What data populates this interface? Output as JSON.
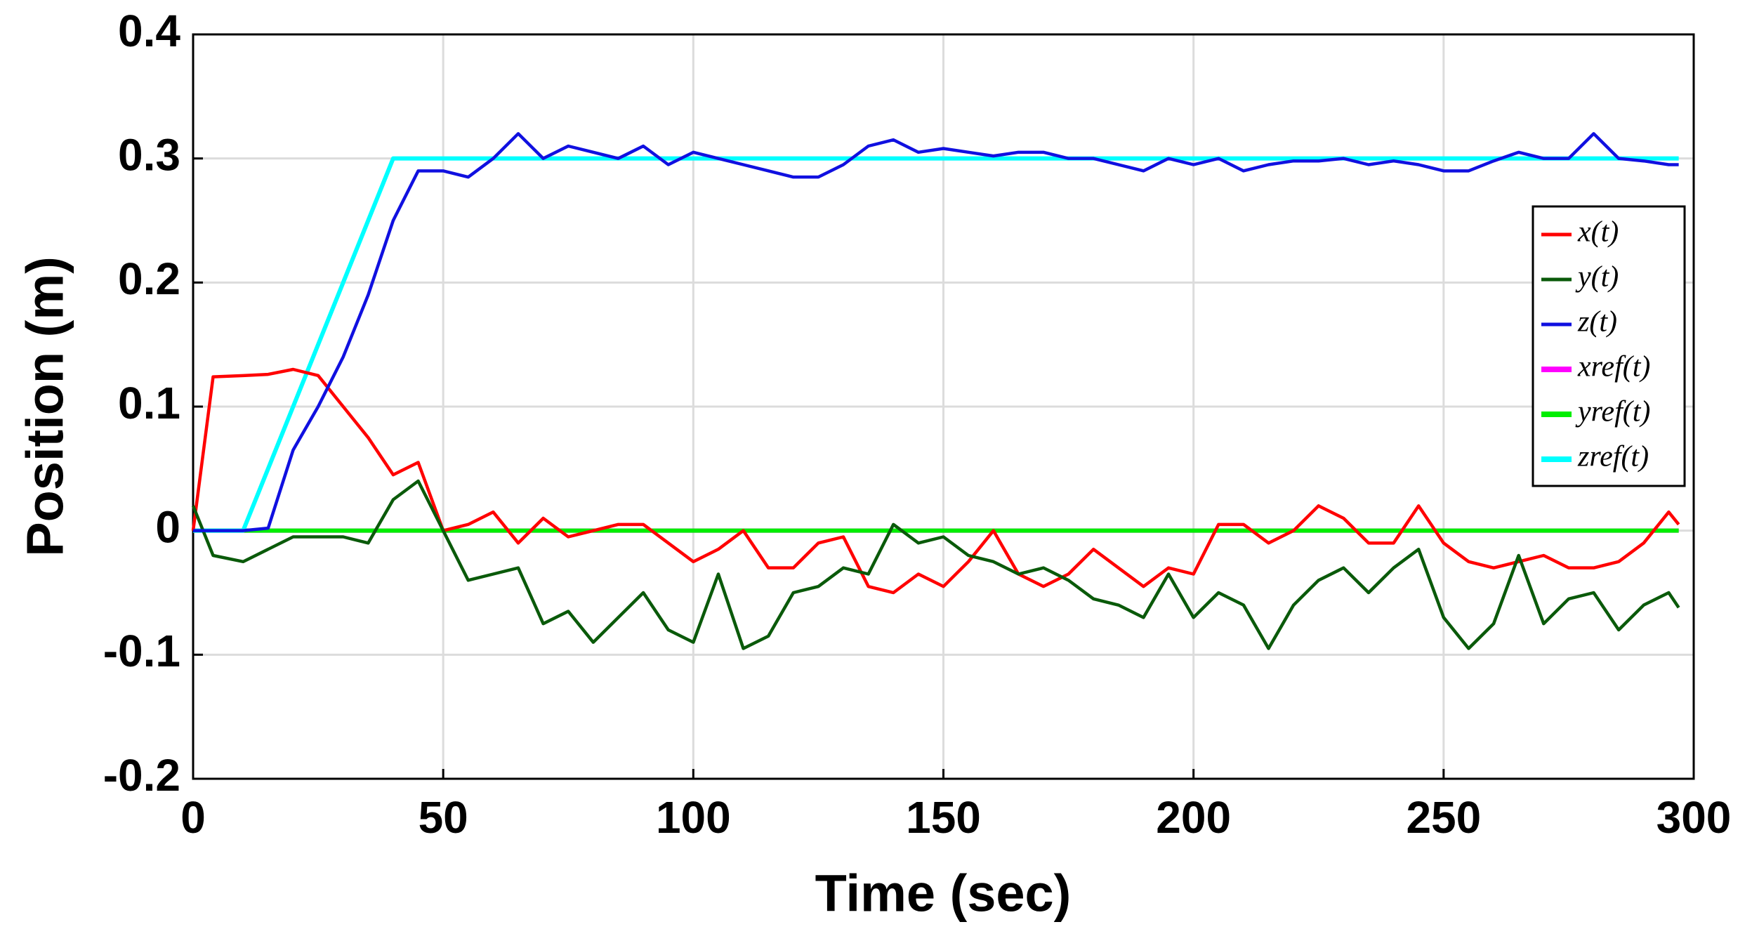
{
  "chart_data": {
    "type": "line",
    "x_label": "Time (sec)",
    "y_label": "Position (m)",
    "xlim": [
      0,
      300
    ],
    "xticks": [
      0,
      50,
      100,
      150,
      200,
      250,
      300
    ],
    "ylim": [
      -0.2,
      0.4
    ],
    "yticks": [
      -0.2,
      -0.1,
      0,
      0.1,
      0.2,
      0.3,
      0.4
    ],
    "grid": true,
    "legend": "right",
    "x": [
      0,
      4,
      10,
      15,
      20,
      25,
      30,
      35,
      40,
      45,
      50,
      55,
      60,
      65,
      70,
      75,
      80,
      85,
      90,
      95,
      100,
      105,
      110,
      115,
      120,
      125,
      130,
      135,
      140,
      145,
      150,
      155,
      160,
      165,
      170,
      175,
      180,
      185,
      190,
      195,
      200,
      205,
      210,
      215,
      220,
      225,
      230,
      235,
      240,
      245,
      250,
      255,
      260,
      265,
      270,
      275,
      280,
      285,
      290,
      295,
      297
    ],
    "series": [
      {
        "name": "x(t)",
        "color": "#ff0000",
        "values": [
          0.0,
          0.124,
          0.125,
          0.126,
          0.13,
          0.125,
          0.1,
          0.075,
          0.045,
          0.055,
          0.0,
          0.005,
          0.015,
          -0.01,
          0.01,
          -0.005,
          0.0,
          0.005,
          0.005,
          -0.01,
          -0.025,
          -0.015,
          0.0,
          -0.03,
          -0.03,
          -0.01,
          -0.005,
          -0.045,
          -0.05,
          -0.035,
          -0.045,
          -0.025,
          0.0,
          -0.035,
          -0.045,
          -0.035,
          -0.015,
          -0.03,
          -0.045,
          -0.03,
          -0.035,
          0.005,
          0.005,
          -0.01,
          0.0,
          0.02,
          0.01,
          -0.01,
          -0.01,
          0.02,
          -0.01,
          -0.025,
          -0.03,
          -0.025,
          -0.02,
          -0.03,
          -0.03,
          -0.025,
          -0.01,
          0.015,
          0.005
        ]
      },
      {
        "name": "y(t)",
        "color": "#0a5a0a",
        "values": [
          0.02,
          -0.02,
          -0.025,
          -0.015,
          -0.005,
          -0.005,
          -0.005,
          -0.01,
          0.025,
          0.04,
          0.0,
          -0.04,
          -0.035,
          -0.03,
          -0.075,
          -0.065,
          -0.09,
          -0.07,
          -0.05,
          -0.08,
          -0.09,
          -0.035,
          -0.095,
          -0.085,
          -0.05,
          -0.045,
          -0.03,
          -0.035,
          0.005,
          -0.01,
          -0.005,
          -0.02,
          -0.025,
          -0.035,
          -0.03,
          -0.04,
          -0.055,
          -0.06,
          -0.07,
          -0.035,
          -0.07,
          -0.05,
          -0.06,
          -0.095,
          -0.06,
          -0.04,
          -0.03,
          -0.05,
          -0.03,
          -0.015,
          -0.07,
          -0.095,
          -0.075,
          -0.02,
          -0.075,
          -0.055,
          -0.05,
          -0.08,
          -0.06,
          -0.05,
          -0.062
        ]
      },
      {
        "name": "z(t)",
        "color": "#1010e0",
        "values": [
          0,
          0,
          0.0,
          0.002,
          0.065,
          0.1,
          0.14,
          0.19,
          0.25,
          0.29,
          0.29,
          0.285,
          0.3,
          0.32,
          0.3,
          0.31,
          0.305,
          0.3,
          0.31,
          0.295,
          0.305,
          0.3,
          0.295,
          0.29,
          0.285,
          0.285,
          0.295,
          0.31,
          0.315,
          0.305,
          0.308,
          0.305,
          0.302,
          0.305,
          0.305,
          0.3,
          0.3,
          0.295,
          0.29,
          0.3,
          0.295,
          0.3,
          0.29,
          0.295,
          0.298,
          0.298,
          0.3,
          0.295,
          0.298,
          0.295,
          0.29,
          0.29,
          0.298,
          0.305,
          0.3,
          0.3,
          0.32,
          0.3,
          0.298,
          0.295,
          0.295
        ]
      },
      {
        "name": "xref(t)",
        "color": "#ff00ff",
        "values": [
          0,
          0,
          0,
          0,
          0,
          0,
          0,
          0,
          0,
          0,
          0,
          0,
          0,
          0,
          0,
          0,
          0,
          0,
          0,
          0,
          0,
          0,
          0,
          0,
          0,
          0,
          0,
          0,
          0,
          0,
          0,
          0,
          0,
          0,
          0,
          0,
          0,
          0,
          0,
          0,
          0,
          0,
          0,
          0,
          0,
          0,
          0,
          0,
          0,
          0,
          0,
          0,
          0,
          0,
          0,
          0,
          0,
          0,
          0,
          0,
          0
        ]
      },
      {
        "name": "yref(t)",
        "color": "#00ee00",
        "values": [
          0,
          0,
          0,
          0,
          0,
          0,
          0,
          0,
          0,
          0,
          0,
          0,
          0,
          0,
          0,
          0,
          0,
          0,
          0,
          0,
          0,
          0,
          0,
          0,
          0,
          0,
          0,
          0,
          0,
          0,
          0,
          0,
          0,
          0,
          0,
          0,
          0,
          0,
          0,
          0,
          0,
          0,
          0,
          0,
          0,
          0,
          0,
          0,
          0,
          0,
          0,
          0,
          0,
          0,
          0,
          0,
          0,
          0,
          0,
          0,
          0
        ]
      },
      {
        "name": "zref(t)",
        "color": "#00ffff",
        "values": [
          0,
          0,
          0,
          0.05,
          0.1,
          0.15,
          0.2,
          0.25,
          0.3,
          0.3,
          0.3,
          0.3,
          0.3,
          0.3,
          0.3,
          0.3,
          0.3,
          0.3,
          0.3,
          0.3,
          0.3,
          0.3,
          0.3,
          0.3,
          0.3,
          0.3,
          0.3,
          0.3,
          0.3,
          0.3,
          0.3,
          0.3,
          0.3,
          0.3,
          0.3,
          0.3,
          0.3,
          0.3,
          0.3,
          0.3,
          0.3,
          0.3,
          0.3,
          0.3,
          0.3,
          0.3,
          0.3,
          0.3,
          0.3,
          0.3,
          0.3,
          0.3,
          0.3,
          0.3,
          0.3,
          0.3,
          0.3,
          0.3,
          0.3,
          0.3,
          0.3
        ]
      }
    ]
  }
}
